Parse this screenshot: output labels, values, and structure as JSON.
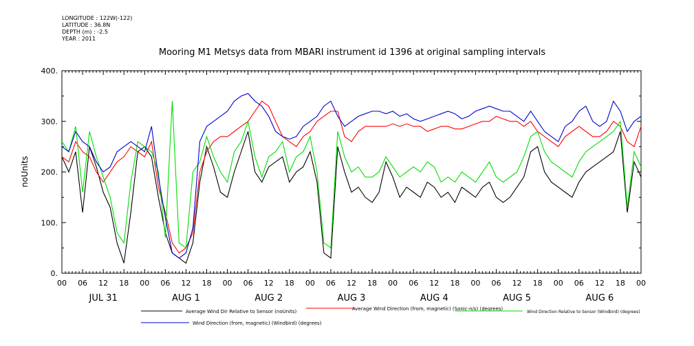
{
  "header": {
    "longitude": "LONGITUDE : 122W(-122)",
    "latitude": "LATITUDE : 36.8N",
    "depth": "DEPTH (m) : -2.5",
    "year": "YEAR : 2011"
  },
  "chart_data": {
    "type": "line",
    "title": "Mooring M1 Metsys data from MBARI instrument id 1396 at original sampling intervals",
    "ylabel": "noUnits",
    "ylim": [
      0,
      400
    ],
    "yticks": [
      0,
      100,
      200,
      300,
      400
    ],
    "ytick_labels": [
      "0.",
      "100.",
      "200.",
      "300.",
      "400."
    ],
    "xlim_hours": [
      0,
      168
    ],
    "hour_tick_labels": [
      "00",
      "06",
      "12",
      "18",
      "00",
      "06",
      "12",
      "18",
      "00",
      "06",
      "12",
      "18",
      "00",
      "06",
      "12",
      "18",
      "00",
      "06",
      "12",
      "18",
      "00",
      "06",
      "12",
      "18",
      "00",
      "06",
      "12",
      "18",
      "00"
    ],
    "day_labels": [
      "JUL 31",
      "AUG 1",
      "AUG 2",
      "AUG 3",
      "AUG 4",
      "AUG 5",
      "AUG 6"
    ],
    "grid": false,
    "legend_placement": "bottom",
    "series": [
      {
        "name": "Average Wind Dir Relative to Sensor (noUnits)",
        "color": "#000000",
        "x": [
          0,
          2,
          4,
          6,
          8,
          10,
          12,
          14,
          16,
          18,
          20,
          22,
          24,
          26,
          28,
          30,
          32,
          34,
          36,
          38,
          40,
          42,
          44,
          46,
          48,
          50,
          52,
          54,
          56,
          58,
          60,
          62,
          64,
          66,
          68,
          70,
          72,
          74,
          76,
          78,
          80,
          82,
          84,
          86,
          88,
          90,
          92,
          94,
          96,
          98,
          100,
          102,
          104,
          106,
          108,
          110,
          112,
          114,
          116,
          118,
          120,
          122,
          124,
          126,
          128,
          130,
          132,
          134,
          136,
          138,
          140,
          142,
          144,
          146,
          148,
          150,
          152,
          154,
          156,
          158,
          160,
          162,
          164,
          166,
          168
        ],
        "y": [
          230,
          200,
          240,
          120,
          250,
          210,
          160,
          130,
          60,
          20,
          120,
          240,
          250,
          230,
          150,
          80,
          40,
          30,
          20,
          60,
          180,
          250,
          210,
          160,
          150,
          200,
          240,
          280,
          200,
          180,
          210,
          220,
          230,
          180,
          200,
          210,
          240,
          180,
          40,
          30,
          250,
          200,
          160,
          170,
          150,
          140,
          160,
          220,
          190,
          150,
          170,
          160,
          150,
          180,
          170,
          150,
          160,
          140,
          170,
          160,
          150,
          170,
          180,
          150,
          140,
          150,
          170,
          190,
          240,
          250,
          200,
          180,
          170,
          160,
          150,
          180,
          200,
          210,
          220,
          230,
          240,
          280,
          120,
          220,
          190
        ]
      },
      {
        "name": "Average Wind Direction (from, magnetic) (Sonic-n/s) (degrees)",
        "color": "#ff0000",
        "x": [
          0,
          2,
          4,
          6,
          8,
          10,
          12,
          14,
          16,
          18,
          20,
          22,
          24,
          26,
          28,
          30,
          32,
          34,
          36,
          38,
          40,
          42,
          44,
          46,
          48,
          50,
          52,
          54,
          56,
          58,
          60,
          62,
          64,
          66,
          68,
          70,
          72,
          74,
          76,
          78,
          80,
          82,
          84,
          86,
          88,
          90,
          92,
          94,
          96,
          98,
          100,
          102,
          104,
          106,
          108,
          110,
          112,
          114,
          116,
          118,
          120,
          122,
          124,
          126,
          128,
          130,
          132,
          134,
          136,
          138,
          140,
          142,
          144,
          146,
          148,
          150,
          152,
          154,
          156,
          158,
          160,
          162,
          164,
          166,
          168
        ],
        "y": [
          230,
          220,
          260,
          240,
          230,
          200,
          180,
          200,
          220,
          230,
          250,
          240,
          230,
          260,
          170,
          120,
          60,
          40,
          50,
          80,
          200,
          240,
          260,
          270,
          270,
          280,
          290,
          300,
          320,
          340,
          330,
          300,
          270,
          260,
          250,
          270,
          280,
          300,
          310,
          320,
          320,
          270,
          260,
          280,
          290,
          290,
          290,
          290,
          295,
          290,
          295,
          290,
          290,
          280,
          285,
          290,
          290,
          285,
          285,
          290,
          295,
          300,
          300,
          310,
          305,
          300,
          300,
          290,
          300,
          280,
          270,
          260,
          250,
          270,
          280,
          290,
          280,
          270,
          270,
          280,
          300,
          290,
          260,
          250,
          290
        ]
      },
      {
        "name": "Wind Direction Relative to Sensor (Windbird) (degrees)",
        "color": "#00dd00",
        "x": [
          0,
          2,
          4,
          6,
          8,
          10,
          12,
          14,
          16,
          18,
          20,
          22,
          24,
          26,
          28,
          30,
          32,
          34,
          36,
          38,
          40,
          42,
          44,
          46,
          48,
          50,
          52,
          54,
          56,
          58,
          60,
          62,
          64,
          66,
          68,
          70,
          72,
          74,
          76,
          78,
          80,
          82,
          84,
          86,
          88,
          90,
          92,
          94,
          96,
          98,
          100,
          102,
          104,
          106,
          108,
          110,
          112,
          114,
          116,
          118,
          120,
          122,
          124,
          126,
          128,
          130,
          132,
          134,
          136,
          138,
          140,
          142,
          144,
          146,
          148,
          150,
          152,
          154,
          156,
          158,
          160,
          162,
          164,
          166,
          168
        ],
        "y": [
          260,
          240,
          290,
          160,
          280,
          230,
          190,
          150,
          80,
          60,
          180,
          260,
          250,
          240,
          200,
          70,
          340,
          60,
          50,
          200,
          220,
          270,
          230,
          200,
          180,
          240,
          260,
          300,
          230,
          190,
          230,
          240,
          260,
          200,
          230,
          240,
          270,
          200,
          60,
          50,
          280,
          230,
          200,
          210,
          190,
          190,
          200,
          230,
          210,
          190,
          200,
          210,
          200,
          220,
          210,
          180,
          190,
          180,
          200,
          190,
          180,
          200,
          220,
          190,
          180,
          190,
          200,
          230,
          270,
          280,
          240,
          220,
          210,
          200,
          190,
          220,
          240,
          250,
          260,
          270,
          280,
          300,
          130,
          240,
          210
        ]
      },
      {
        "name": "Wind Direction (from, magnetic) (Windbird) (degrees)",
        "color": "#0000cc",
        "x": [
          0,
          2,
          4,
          6,
          8,
          10,
          12,
          14,
          16,
          18,
          20,
          22,
          24,
          26,
          28,
          30,
          32,
          34,
          36,
          38,
          40,
          42,
          44,
          46,
          48,
          50,
          52,
          54,
          56,
          58,
          60,
          62,
          64,
          66,
          68,
          70,
          72,
          74,
          76,
          78,
          80,
          82,
          84,
          86,
          88,
          90,
          92,
          94,
          96,
          98,
          100,
          102,
          104,
          106,
          108,
          110,
          112,
          114,
          116,
          118,
          120,
          122,
          124,
          126,
          128,
          130,
          132,
          134,
          136,
          138,
          140,
          142,
          144,
          146,
          148,
          150,
          152,
          154,
          156,
          158,
          160,
          162,
          164,
          166,
          168
        ],
        "y": [
          250,
          240,
          280,
          260,
          250,
          220,
          200,
          210,
          240,
          250,
          260,
          250,
          240,
          290,
          190,
          110,
          40,
          30,
          40,
          90,
          260,
          290,
          300,
          310,
          320,
          340,
          350,
          355,
          340,
          330,
          310,
          280,
          270,
          265,
          270,
          290,
          300,
          310,
          330,
          340,
          310,
          290,
          300,
          310,
          315,
          320,
          320,
          315,
          320,
          310,
          315,
          305,
          300,
          305,
          310,
          315,
          320,
          315,
          305,
          310,
          320,
          325,
          330,
          325,
          320,
          320,
          310,
          300,
          320,
          300,
          280,
          270,
          260,
          290,
          300,
          320,
          330,
          300,
          290,
          300,
          340,
          320,
          280,
          300,
          310
        ]
      }
    ]
  }
}
